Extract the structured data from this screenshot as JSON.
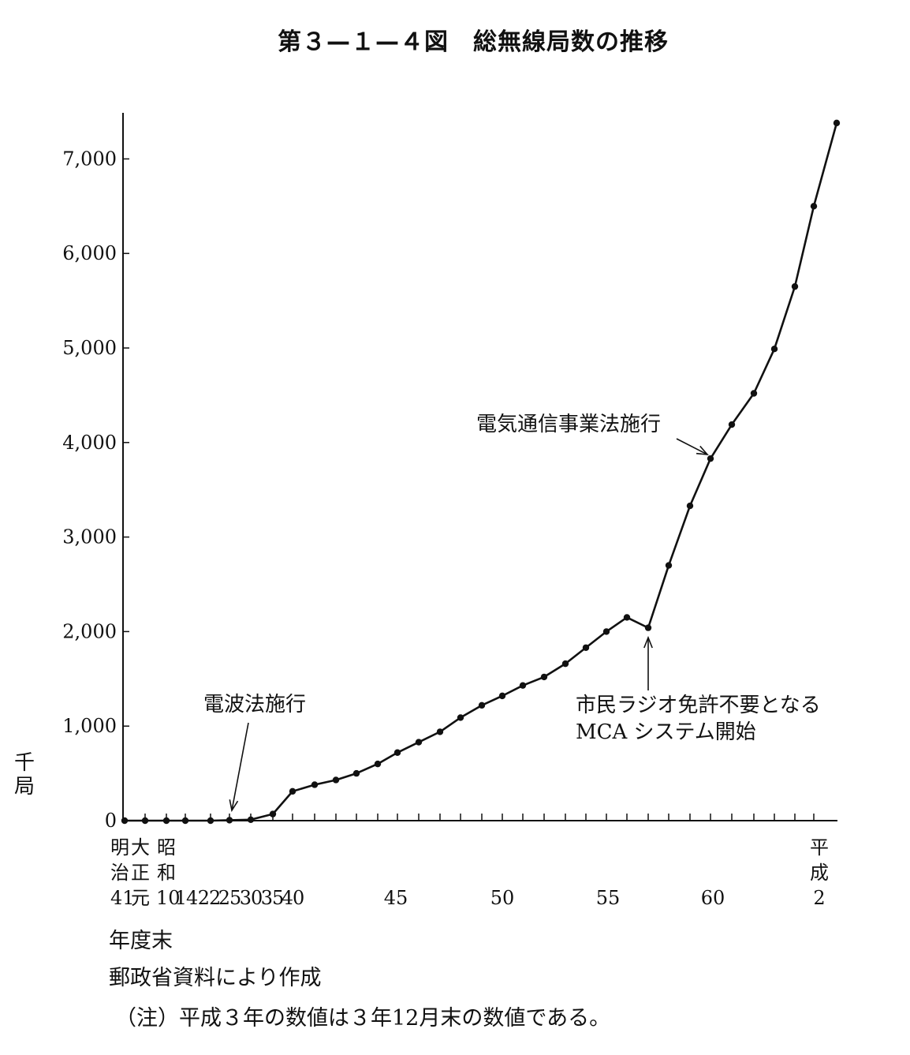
{
  "title": "第３—１—４図　総無線局数の推移",
  "y_unit": [
    "千",
    "局"
  ],
  "x_axis_title": "年度末",
  "source_note": "郵政省資料により作成",
  "footnote": "（注）平成３年の数値は３年12月末の数値である。",
  "annotations": {
    "radio_law": "電波法施行",
    "telecom_law": "電気通信事業法施行",
    "citizen_radio_line1": "市民ラジオ免許不要となる",
    "citizen_radio_line2": "MCA システム開始"
  },
  "x_era_labels": {
    "meiji": [
      "明",
      "治",
      "41"
    ],
    "taisho": [
      "大",
      "正",
      "元"
    ],
    "showa": [
      "昭",
      "和",
      "10"
    ],
    "heisei": [
      "平",
      "成",
      "2"
    ]
  },
  "x_tick_labels": [
    "14",
    "22",
    "25",
    "30",
    "35",
    "40",
    "45",
    "50",
    "55",
    "60"
  ],
  "chart_data": {
    "type": "line",
    "title": "総無線局数の推移",
    "xlabel": "年度末",
    "ylabel": "千局",
    "ylim": [
      0,
      7500
    ],
    "y_ticks": [
      0,
      1000,
      2000,
      3000,
      4000,
      5000,
      6000,
      7000
    ],
    "y_tick_labels": [
      "0",
      "1,000",
      "2,000",
      "3,000",
      "4,000",
      "5,000",
      "6,000",
      "7,000"
    ],
    "grid": false,
    "series": [
      {
        "x": [
          "明治41",
          "大正元",
          "昭和10",
          "昭和14",
          "昭和22",
          "昭和25",
          "昭和30",
          "昭和35",
          "昭和40",
          "昭和41",
          "昭和42",
          "昭和43",
          "昭和44",
          "昭和45",
          "昭和46",
          "昭和47",
          "昭和48",
          "昭和49",
          "昭和50",
          "昭和51",
          "昭和52",
          "昭和53",
          "昭和54",
          "昭和55",
          "昭和56",
          "昭和57",
          "昭和58",
          "昭和59",
          "昭和60",
          "昭和61",
          "昭和62",
          "昭和63",
          "平成元",
          "平成2",
          "平成3"
        ],
        "values": [
          0,
          0,
          0,
          0,
          0,
          5,
          10,
          70,
          310,
          380,
          430,
          500,
          600,
          720,
          830,
          940,
          1090,
          1220,
          1320,
          1430,
          1520,
          1660,
          1830,
          2000,
          2150,
          2040,
          2700,
          3330,
          3830,
          4190,
          4520,
          4990,
          5650,
          6500,
          7380
        ]
      }
    ]
  }
}
